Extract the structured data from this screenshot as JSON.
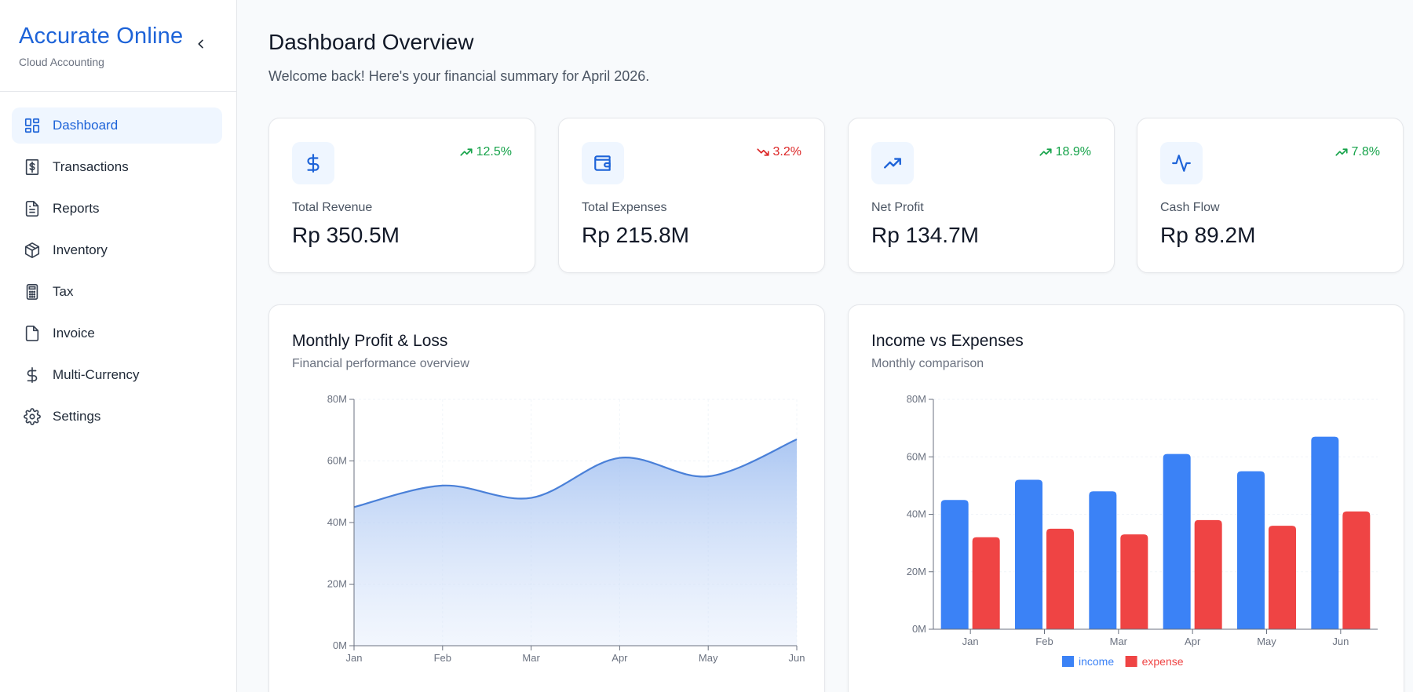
{
  "app": {
    "brand_title": "Accurate Online",
    "brand_subtitle": "Cloud Accounting",
    "accent_color": "#1d63d8"
  },
  "sidebar": {
    "collapse_icon": "chevron-left-icon",
    "items": [
      {
        "label": "Dashboard",
        "icon": "layout-grid-icon",
        "active": true
      },
      {
        "label": "Transactions",
        "icon": "dollar-receipt-icon",
        "active": false
      },
      {
        "label": "Reports",
        "icon": "file-text-icon",
        "active": false
      },
      {
        "label": "Inventory",
        "icon": "package-icon",
        "active": false
      },
      {
        "label": "Tax",
        "icon": "calculator-icon",
        "active": false
      },
      {
        "label": "Invoice",
        "icon": "file-icon",
        "active": false
      },
      {
        "label": "Multi-Currency",
        "icon": "dollar-icon",
        "active": false
      },
      {
        "label": "Settings",
        "icon": "gear-icon",
        "active": false
      }
    ]
  },
  "header": {
    "title": "Dashboard Overview",
    "subtitle": "Welcome back! Here's your financial summary for April 2026."
  },
  "stats": [
    {
      "label": "Total Revenue",
      "value": "Rp 350.5M",
      "change": "12.5%",
      "trend": "up",
      "icon": "dollar-icon"
    },
    {
      "label": "Total Expenses",
      "value": "Rp 215.8M",
      "change": "3.2%",
      "trend": "down",
      "icon": "wallet-icon"
    },
    {
      "label": "Net Profit",
      "value": "Rp 134.7M",
      "change": "18.9%",
      "trend": "up",
      "icon": "trending-up-icon"
    },
    {
      "label": "Cash Flow",
      "value": "Rp 89.2M",
      "change": "7.8%",
      "trend": "up",
      "icon": "activity-icon"
    }
  ],
  "charts": {
    "profit_loss": {
      "title": "Monthly Profit & Loss",
      "subtitle": "Financial performance overview"
    },
    "income_expenses": {
      "title": "Income vs Expenses",
      "subtitle": "Monthly comparison"
    }
  },
  "chart_data": [
    {
      "type": "area",
      "title": "Monthly Profit & Loss",
      "subtitle": "Financial performance overview",
      "categories": [
        "Jan",
        "Feb",
        "Mar",
        "Apr",
        "May",
        "Jun"
      ],
      "values": [
        45,
        52,
        48,
        61,
        55,
        67
      ],
      "unit": "M",
      "ylim": [
        0,
        80
      ],
      "yticks": [
        "0M",
        "20M",
        "40M",
        "60M",
        "80M"
      ],
      "grid": true,
      "color": "#4a80d8"
    },
    {
      "type": "bar",
      "title": "Income vs Expenses",
      "subtitle": "Monthly comparison",
      "categories": [
        "Jan",
        "Feb",
        "Mar",
        "Apr",
        "May",
        "Jun"
      ],
      "series": [
        {
          "name": "income",
          "values": [
            45,
            52,
            48,
            61,
            55,
            67
          ],
          "color": "#3b82f6"
        },
        {
          "name": "expense",
          "values": [
            32,
            35,
            33,
            38,
            36,
            41
          ],
          "color": "#ef4444"
        }
      ],
      "unit": "M",
      "ylim": [
        0,
        80
      ],
      "yticks": [
        "0M",
        "20M",
        "40M",
        "60M",
        "80M"
      ],
      "legend": "bottom-center",
      "grid": true
    }
  ]
}
